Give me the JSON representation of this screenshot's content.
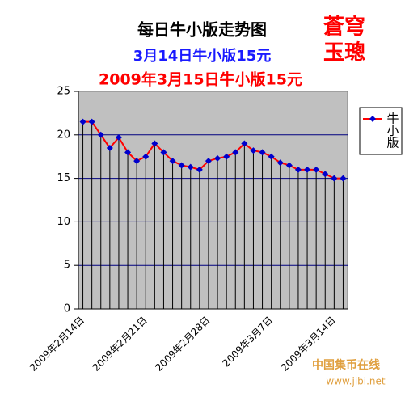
{
  "chart_data": {
    "type": "line",
    "title": "每日牛小版走势图",
    "subtitle": "3月14日牛小版15元",
    "annotation": "2009年3月15日牛小版15元",
    "stamp": [
      "蒼穹",
      "玉璁"
    ],
    "watermark": [
      "中国集币在线",
      "www.jibi.net"
    ],
    "categories": [
      "2009年2月14日",
      null,
      null,
      null,
      null,
      null,
      null,
      "2009年2月21日",
      null,
      null,
      null,
      null,
      null,
      null,
      "2009年2月28日",
      null,
      null,
      null,
      null,
      null,
      null,
      "2009年3月7日",
      null,
      null,
      null,
      null,
      null,
      null,
      "2009年3月14日",
      null
    ],
    "series": [
      {
        "name": "牛小版",
        "color": "#ff0000",
        "marker_color": "#0000cc",
        "values": [
          21.5,
          21.5,
          20,
          18.5,
          19.7,
          18,
          17,
          17.5,
          19,
          18,
          17,
          16.5,
          16.3,
          16,
          17,
          17.3,
          17.5,
          18,
          19,
          18.2,
          18,
          17.5,
          16.8,
          16.5,
          16,
          16,
          16,
          15.5,
          15,
          15
        ]
      }
    ],
    "ylim": [
      0,
      25
    ],
    "yticks": [
      0,
      5,
      10,
      15,
      20,
      25
    ],
    "grid": true,
    "drop_lines": true,
    "legend": "right"
  }
}
